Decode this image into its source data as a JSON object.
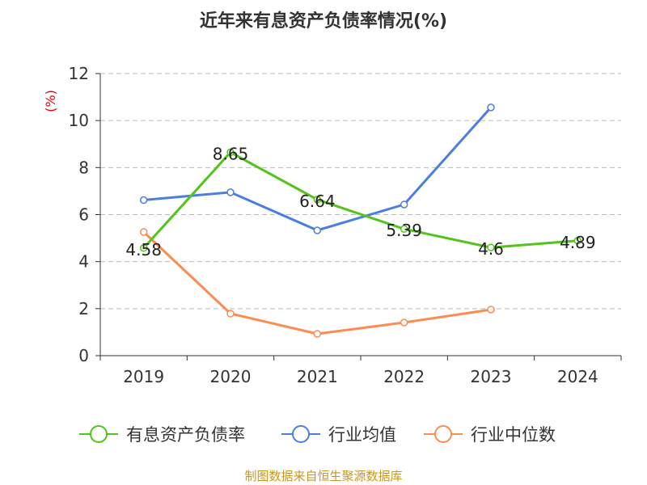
{
  "chart_data": {
    "type": "line",
    "title": "近年来有息资产负债率情况(%)",
    "ylabel": "(%)",
    "categories": [
      "2019",
      "2020",
      "2021",
      "2022",
      "2023",
      "2024"
    ],
    "ylim": [
      0,
      12
    ],
    "yticks": [
      "0",
      "2",
      "4",
      "6",
      "8",
      "10",
      "12"
    ],
    "grid": true,
    "legend_position": "bottom",
    "series": [
      {
        "name": "有息资产负债率",
        "color": "#52c41a",
        "values": [
          4.58,
          8.65,
          6.64,
          5.39,
          4.6,
          4.89
        ],
        "labels": [
          "4.58",
          "8.65",
          "6.64",
          "5.39",
          "4.6",
          "4.89"
        ]
      },
      {
        "name": "行业均值",
        "color": "#4a7fe0",
        "values": [
          6.62,
          6.95,
          5.33,
          6.43,
          10.56,
          null
        ]
      },
      {
        "name": "行业中位数",
        "color": "#fb8c52",
        "values": [
          5.26,
          1.79,
          0.93,
          1.41,
          1.96,
          null
        ]
      }
    ]
  },
  "source": "制图数据来自恒生聚源数据库"
}
